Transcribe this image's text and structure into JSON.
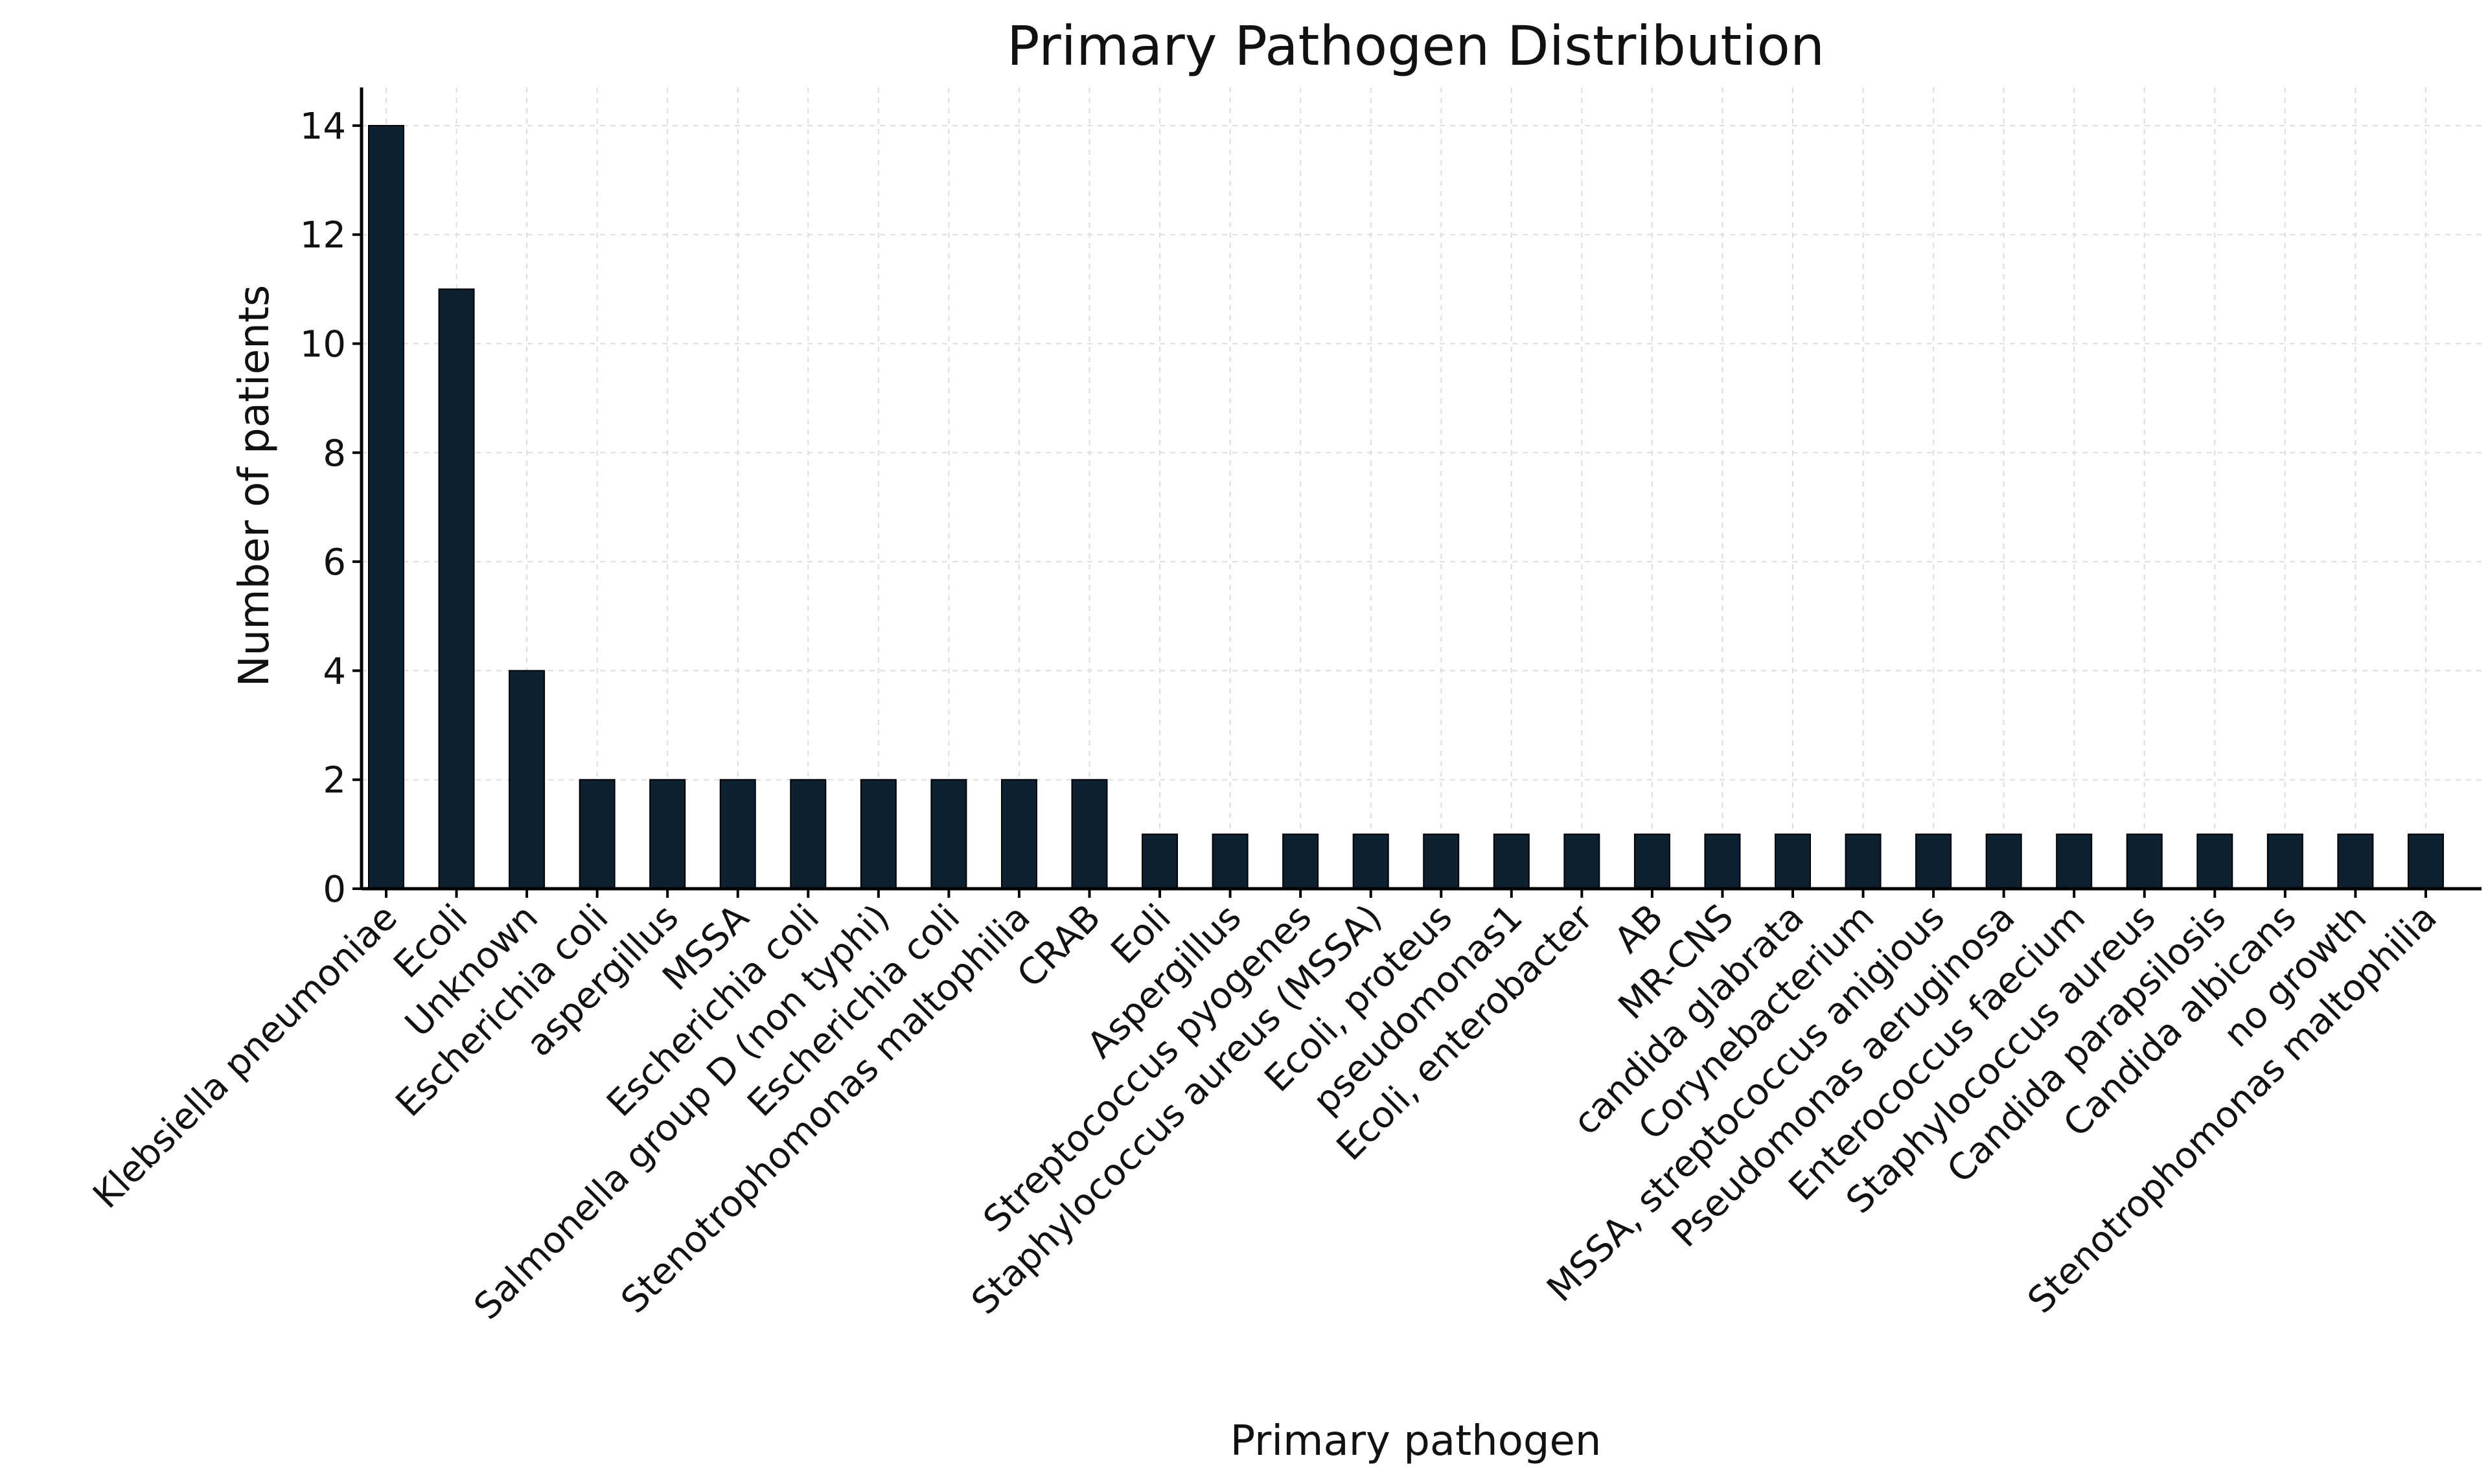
{
  "chart_data": {
    "type": "bar",
    "title": "Primary Pathogen Distribution",
    "xlabel": "Primary pathogen",
    "ylabel": "Number of patients",
    "ylim": [
      0,
      14.7
    ],
    "yticks": [
      0,
      2,
      4,
      6,
      8,
      10,
      12,
      14
    ],
    "grid": true,
    "legend": "none",
    "bar_color": "#0c2233",
    "categories": [
      "Klebsiella pneumoniae",
      "Ecoli",
      "Unknown",
      "Escherichia coli",
      "aspergillus",
      "MSSA",
      "Escherichia coli ",
      "Salmonella group D (non typhi)",
      "Escherichia coli",
      "Stenotrophomonas maltophilia",
      "CRAB",
      "Eoli",
      "Aspergillus",
      "Streptococcus pyogenes",
      "Staphylococcus aureus (MSSA)",
      "Ecoli, proteus",
      "pseudomonas1",
      "Ecoli, enterobacter",
      "AB",
      "MR-CNS",
      "candida glabrata",
      "Corynebacterium",
      "MSSA, streptococcus anigious",
      "Pseudomonas aeruginosa",
      "Enterococcus faecium",
      "Staphylococcus aureus",
      "Candida parapsilosis",
      "Candida albicans",
      "no growth",
      "Stenotrophomonas maltophilia "
    ],
    "values": [
      14,
      11,
      4,
      2,
      2,
      2,
      2,
      2,
      2,
      2,
      2,
      1,
      1,
      1,
      1,
      1,
      1,
      1,
      1,
      1,
      1,
      1,
      1,
      1,
      1,
      1,
      1,
      1,
      1,
      1
    ]
  }
}
